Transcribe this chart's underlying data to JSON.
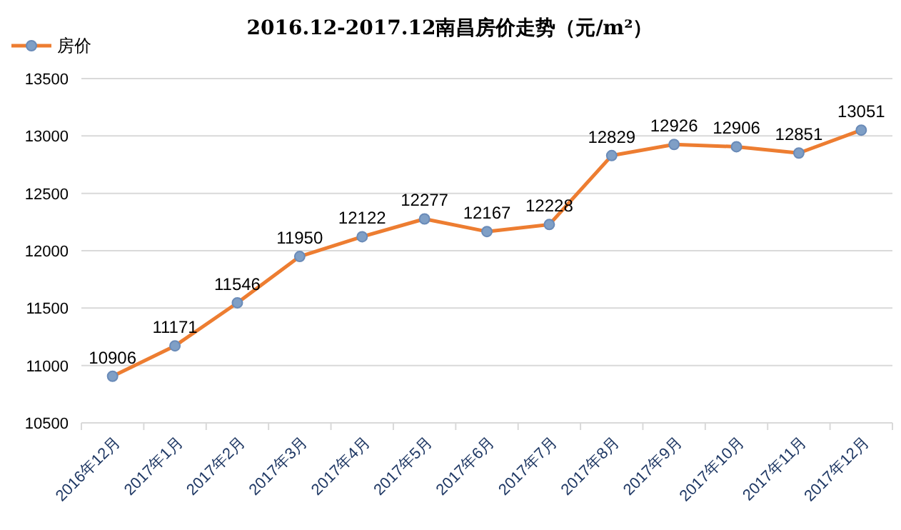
{
  "chart_data": {
    "type": "line",
    "title": "2016.12-2017.12南昌房价走势（元/m²）",
    "categories": [
      "2016年12月",
      "2017年1月",
      "2017年2月",
      "2017年3月",
      "2017年4月",
      "2017年5月",
      "2017年6月",
      "2017年7月",
      "2017年8月",
      "2017年9月",
      "2017年10月",
      "2017年11月",
      "2017年12月"
    ],
    "series": [
      {
        "name": "房价",
        "color": "#ed7d31",
        "values": [
          10906,
          11171,
          11546,
          11950,
          12122,
          12277,
          12167,
          12228,
          12829,
          12926,
          12906,
          12851,
          13051
        ]
      }
    ],
    "ylim": [
      10500,
      13500
    ],
    "yticks": [
      10500,
      11000,
      11500,
      12000,
      12500,
      13000,
      13500
    ],
    "grid": "y",
    "legend": "top left",
    "marker": "circle",
    "data_labels": true
  }
}
